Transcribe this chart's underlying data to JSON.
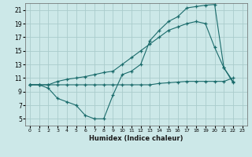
{
  "xlabel": "Humidex (Indice chaleur)",
  "bg_color": "#cce8e8",
  "grid_color": "#aacccc",
  "line_color": "#1a6b6b",
  "ylim": [
    4,
    22
  ],
  "xlim": [
    -0.5,
    23.5
  ],
  "yticks": [
    5,
    7,
    9,
    11,
    13,
    15,
    17,
    19,
    21
  ],
  "xticks": [
    0,
    1,
    2,
    3,
    4,
    5,
    6,
    7,
    8,
    9,
    10,
    11,
    12,
    13,
    14,
    15,
    16,
    17,
    18,
    19,
    20,
    21,
    22,
    23
  ],
  "xtick_labels": [
    "0",
    "1",
    "2",
    "3",
    "4",
    "5",
    "6",
    "7",
    "8",
    "9",
    "10",
    "11",
    "12",
    "13",
    "14",
    "15",
    "16",
    "17",
    "18",
    "19",
    "20",
    "21",
    "22",
    "23"
  ],
  "line1_x": [
    0,
    1,
    2,
    3,
    4,
    5,
    6,
    7,
    8,
    9,
    10,
    11,
    12,
    13,
    14,
    15,
    16,
    17,
    18,
    19,
    20,
    21,
    22
  ],
  "line1_y": [
    10,
    10,
    9.5,
    8,
    7.5,
    7,
    5.5,
    5,
    5,
    8.5,
    11.5,
    12,
    13,
    16.5,
    18,
    19.3,
    20,
    21.3,
    21.5,
    21.7,
    21.8,
    12.5,
    10.3
  ],
  "line2_x": [
    0,
    1,
    2,
    3,
    4,
    5,
    6,
    7,
    8,
    9,
    10,
    11,
    12,
    13,
    14,
    15,
    16,
    17,
    18,
    19,
    20,
    21,
    22
  ],
  "line2_y": [
    10,
    10,
    10,
    10.5,
    10.8,
    11,
    11.2,
    11.5,
    11.8,
    12,
    13,
    14,
    15,
    16,
    17,
    18,
    18.5,
    19,
    19.3,
    19,
    15.5,
    12.5,
    10.5
  ],
  "line3_x": [
    0,
    1,
    2,
    3,
    4,
    5,
    6,
    7,
    8,
    9,
    10,
    11,
    12,
    13,
    14,
    15,
    16,
    17,
    18,
    19,
    20,
    21,
    22
  ],
  "line3_y": [
    10,
    10,
    10,
    10,
    10,
    10,
    10,
    10,
    10,
    10,
    10,
    10,
    10,
    10,
    10.2,
    10.3,
    10.4,
    10.5,
    10.5,
    10.5,
    10.5,
    10.5,
    11
  ]
}
